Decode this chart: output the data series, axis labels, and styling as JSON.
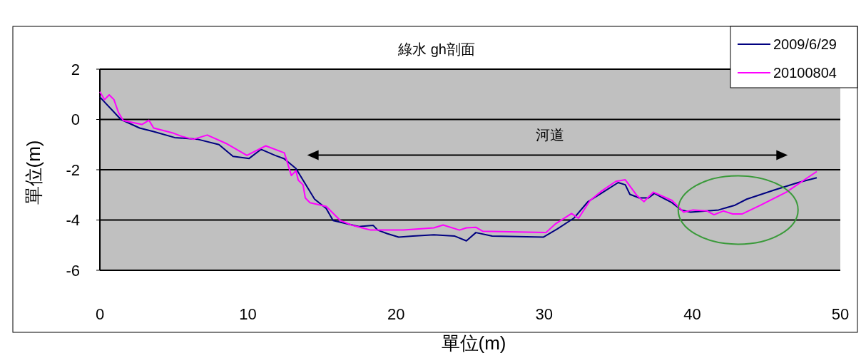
{
  "chart_data": {
    "type": "line",
    "title": "綠水 gh剖面",
    "xlabel": "單位(m)",
    "ylabel": "單位(m)",
    "xlim": [
      0,
      50
    ],
    "xticks": [
      0,
      10,
      20,
      30,
      40,
      50
    ],
    "ylim": [
      -6,
      2
    ],
    "yticks": [
      -6,
      -4,
      -2,
      0,
      2
    ],
    "grid": "y",
    "legend": "top right",
    "marker": "none",
    "line_style": "solid",
    "annotations": [
      "河道"
    ],
    "series": [
      {
        "name": "2009/6/29",
        "color": "#000080",
        "x": [
          0,
          1.42,
          2.68,
          3.63,
          5.05,
          6.62,
          8.04,
          8.99,
          10.08,
          10.88,
          11.83,
          12.44,
          13.24,
          14.5,
          15.28,
          15.75,
          17.5,
          18.45,
          18.76,
          19.39,
          20.18,
          21.13,
          22.55,
          23.97,
          24.75,
          25.39,
          26.49,
          29.96,
          30.9,
          32.0,
          32.96,
          33.74,
          35.0,
          35.48,
          35.79,
          36.42,
          37.05,
          37.45,
          38.0,
          38.63,
          39.26,
          39.89,
          41.78,
          42.89,
          43.68,
          45.57,
          47.15,
          48.41
        ],
        "values": [
          0.89,
          0,
          -0.34,
          -0.48,
          -0.72,
          -0.79,
          -1.0,
          -1.47,
          -1.55,
          -1.19,
          -1.43,
          -1.56,
          -1.95,
          -3.17,
          -3.54,
          -4.02,
          -4.26,
          -4.21,
          -4.4,
          -4.54,
          -4.68,
          -4.64,
          -4.59,
          -4.64,
          -4.83,
          -4.5,
          -4.64,
          -4.68,
          -4.35,
          -3.93,
          -3.27,
          -2.98,
          -2.51,
          -2.6,
          -2.98,
          -3.12,
          -3.12,
          -2.94,
          -3.12,
          -3.31,
          -3.6,
          -3.69,
          -3.6,
          -3.41,
          -3.17,
          -2.8,
          -2.51,
          -2.32
        ]
      },
      {
        "name": "20100804",
        "color": "#ff00ff",
        "x": [
          0,
          0.32,
          0.63,
          0.95,
          1.26,
          1.58,
          2.84,
          3.31,
          3.63,
          4.89,
          5.52,
          6.31,
          7.25,
          8.51,
          9.93,
          11.2,
          12.46,
          12.93,
          13.24,
          13.4,
          13.72,
          13.87,
          14.19,
          15.29,
          16.24,
          17.03,
          18.29,
          20.5,
          22.55,
          23.18,
          24.28,
          24.75,
          25.39,
          25.86,
          30.12,
          30.75,
          31.85,
          32.32,
          33.11,
          33.9,
          34.85,
          35.48,
          36.27,
          36.74,
          37.37,
          38.63,
          39.42,
          40.05,
          41.0,
          41.47,
          42.1,
          42.73,
          43.36,
          44.62,
          46.36,
          47.78,
          48.41
        ],
        "values": [
          1.1,
          0.79,
          0.98,
          0.79,
          0.27,
          -0.04,
          -0.2,
          -0.03,
          -0.34,
          -0.53,
          -0.67,
          -0.79,
          -0.62,
          -0.95,
          -1.43,
          -1.05,
          -1.33,
          -2.23,
          -2.04,
          -2.42,
          -2.6,
          -3.12,
          -3.31,
          -3.46,
          -4.02,
          -4.21,
          -4.4,
          -4.4,
          -4.31,
          -4.2,
          -4.4,
          -4.31,
          -4.29,
          -4.45,
          -4.5,
          -4.16,
          -3.74,
          -3.93,
          -3.22,
          -2.84,
          -2.46,
          -2.4,
          -3.03,
          -3.27,
          -2.89,
          -3.22,
          -3.69,
          -3.6,
          -3.64,
          -3.79,
          -3.64,
          -3.76,
          -3.76,
          -3.41,
          -2.89,
          -2.32,
          -2.07
        ]
      }
    ]
  }
}
